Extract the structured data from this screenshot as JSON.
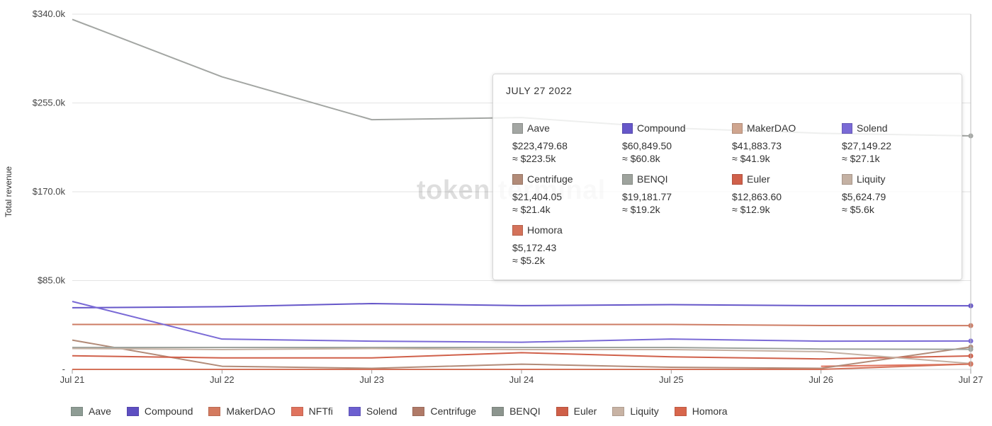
{
  "chart_data": {
    "type": "line",
    "ylabel": "Total revenue",
    "xlabel": "",
    "x": [
      "Jul 21",
      "Jul 22",
      "Jul 23",
      "Jul 24",
      "Jul 25",
      "Jul 26",
      "Jul 27"
    ],
    "ylim": [
      0,
      340000
    ],
    "yticks": [
      {
        "value": 0,
        "label": "-"
      },
      {
        "value": 85000,
        "label": "$85.0k"
      },
      {
        "value": 170000,
        "label": "$170.0k"
      },
      {
        "value": 255000,
        "label": "$255.0k"
      },
      {
        "value": 340000,
        "label": "$340.0k"
      }
    ],
    "grid": true,
    "legend_position": "bottom",
    "series": [
      {
        "name": "Aave",
        "color": "#a3a6a3",
        "values": [
          335000,
          280000,
          239000,
          241000,
          231000,
          226000,
          223479.68
        ]
      },
      {
        "name": "Compound",
        "color": "#6657c9",
        "values": [
          59000,
          60000,
          63000,
          61000,
          62000,
          61000,
          60849.5
        ]
      },
      {
        "name": "MakerDAO",
        "color": "#cd7c64",
        "values": [
          43000,
          43000,
          43000,
          43000,
          43000,
          42000,
          41883.73
        ]
      },
      {
        "name": "NFTfi",
        "color": "#e0735e",
        "values": [
          null,
          null,
          null,
          null,
          null,
          3000,
          5000
        ]
      },
      {
        "name": "Solend",
        "color": "#7a6ad6",
        "values": [
          65000,
          29000,
          27000,
          26000,
          29000,
          27000,
          27149.22
        ]
      },
      {
        "name": "Centrifuge",
        "color": "#b28b78",
        "values": [
          28000,
          3000,
          1000,
          5000,
          2000,
          1000,
          21404.05
        ]
      },
      {
        "name": "BENQI",
        "color": "#9ea39d",
        "values": [
          21000,
          21000,
          21000,
          21000,
          21000,
          19500,
          19181.77
        ]
      },
      {
        "name": "Euler",
        "color": "#d0604a",
        "values": [
          13000,
          11000,
          11000,
          16000,
          12000,
          10000,
          12863.6
        ]
      },
      {
        "name": "Liquity",
        "color": "#c4b1a3",
        "values": [
          20000,
          19000,
          20000,
          19000,
          19000,
          17000,
          5624.79
        ]
      },
      {
        "name": "Homora",
        "color": "#d4725a",
        "values": [
          0,
          0,
          0,
          0,
          0,
          0,
          5172.43
        ]
      }
    ]
  },
  "watermark": "token terminal",
  "tooltip": {
    "date": "JULY 27 2022",
    "entries": [
      {
        "name": "Aave",
        "value": "$223,479.68",
        "approx": "≈ $223.5k",
        "color": "#a3a6a3"
      },
      {
        "name": "Compound",
        "value": "$60,849.50",
        "approx": "≈ $60.8k",
        "color": "#6657c9"
      },
      {
        "name": "MakerDAO",
        "value": "$41,883.73",
        "approx": "≈ $41.9k",
        "color": "#cfa58f"
      },
      {
        "name": "Solend",
        "value": "$27,149.22",
        "approx": "≈ $27.1k",
        "color": "#7a6ad6"
      },
      {
        "name": "Centrifuge",
        "value": "$21,404.05",
        "approx": "≈ $21.4k",
        "color": "#b28b78"
      },
      {
        "name": "BENQI",
        "value": "$19,181.77",
        "approx": "≈ $19.2k",
        "color": "#9ea39d"
      },
      {
        "name": "Euler",
        "value": "$12,863.60",
        "approx": "≈ $12.9k",
        "color": "#d0604a"
      },
      {
        "name": "Liquity",
        "value": "$5,624.79",
        "approx": "≈ $5.6k",
        "color": "#c4b1a3"
      },
      {
        "name": "Homora",
        "value": "$5,172.43",
        "approx": "≈ $5.2k",
        "color": "#d4725a"
      }
    ]
  },
  "legend": [
    {
      "name": "Aave",
      "color": "#8e9c94"
    },
    {
      "name": "Compound",
      "color": "#5e4fc2"
    },
    {
      "name": "MakerDAO",
      "color": "#d47a5f"
    },
    {
      "name": "NFTfi",
      "color": "#e0735e"
    },
    {
      "name": "Solend",
      "color": "#6c5fd0"
    },
    {
      "name": "Centrifuge",
      "color": "#b07a68"
    },
    {
      "name": "BENQI",
      "color": "#8c958e"
    },
    {
      "name": "Euler",
      "color": "#cf5f48"
    },
    {
      "name": "Liquity",
      "color": "#c8b3a4"
    },
    {
      "name": "Homora",
      "color": "#d8664c"
    }
  ]
}
